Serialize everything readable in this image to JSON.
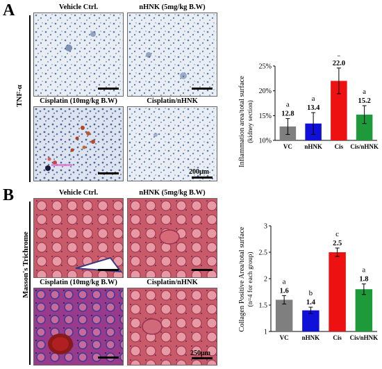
{
  "panelA": {
    "letter": "A",
    "stain_label": "TNF-α",
    "images": [
      {
        "title": "Vehicle Ctrl."
      },
      {
        "title": "nHNK (5mg/kg B.W)"
      },
      {
        "title": "Cisplatin (10mg/kg B.W)"
      },
      {
        "title": "Cisplatin/nHNK"
      }
    ],
    "scale_text": "200μm"
  },
  "panelB": {
    "letter": "B",
    "stain_label": "Masson's Trichrome",
    "images": [
      {
        "title": "Vehicle Ctrl."
      },
      {
        "title": "nHNK (5mg/kg B.W)"
      },
      {
        "title": "Cisplatin (10mg/kg B.W)"
      },
      {
        "title": "Cisplatin/nHNK"
      }
    ],
    "scale_text": "250μm"
  },
  "chart_data": [
    {
      "type": "bar",
      "ylabel": "Inflammation area/total surface",
      "ylabel2": "(kidney section)",
      "categories": [
        "VC",
        "nHNK",
        "Cis",
        "Cis/nHNK"
      ],
      "values": [
        12.8,
        13.4,
        22.0,
        15.2
      ],
      "value_labels": [
        "12.8",
        "13.4",
        "22.0",
        "15.2"
      ],
      "errors": [
        1.6,
        2.2,
        2.6,
        1.8
      ],
      "letters": [
        "a",
        "a",
        "b",
        "a"
      ],
      "colors": [
        "#7f7f7f",
        "#1010d8",
        "#ee1111",
        "#1e9a3a"
      ],
      "ylim": [
        10,
        25
      ],
      "yticks": [
        10,
        15,
        20,
        25
      ],
      "ytick_labels": [
        "10%",
        "15%",
        "20%",
        "25%"
      ]
    },
    {
      "type": "bar",
      "ylabel": "Collagen Positive Area/total surface",
      "ylabel2": "(n=4 for each group)",
      "categories": [
        "VC",
        "nHNK",
        "Cis",
        "Cis/nHNK"
      ],
      "values": [
        1.6,
        1.4,
        2.5,
        1.8
      ],
      "value_labels": [
        "1.6",
        "1.4",
        "2.5",
        "1.8"
      ],
      "errors": [
        0.08,
        0.06,
        0.08,
        0.1
      ],
      "letters": [
        "a",
        "b",
        "c",
        "a"
      ],
      "colors": [
        "#7f7f7f",
        "#1010d8",
        "#ee1111",
        "#1e9a3a"
      ],
      "ylim": [
        1,
        3
      ],
      "yticks": [
        1,
        1.5,
        2,
        2.5,
        3
      ],
      "ytick_labels": [
        "1",
        "1.5",
        "2",
        "2.5",
        "3"
      ]
    }
  ]
}
